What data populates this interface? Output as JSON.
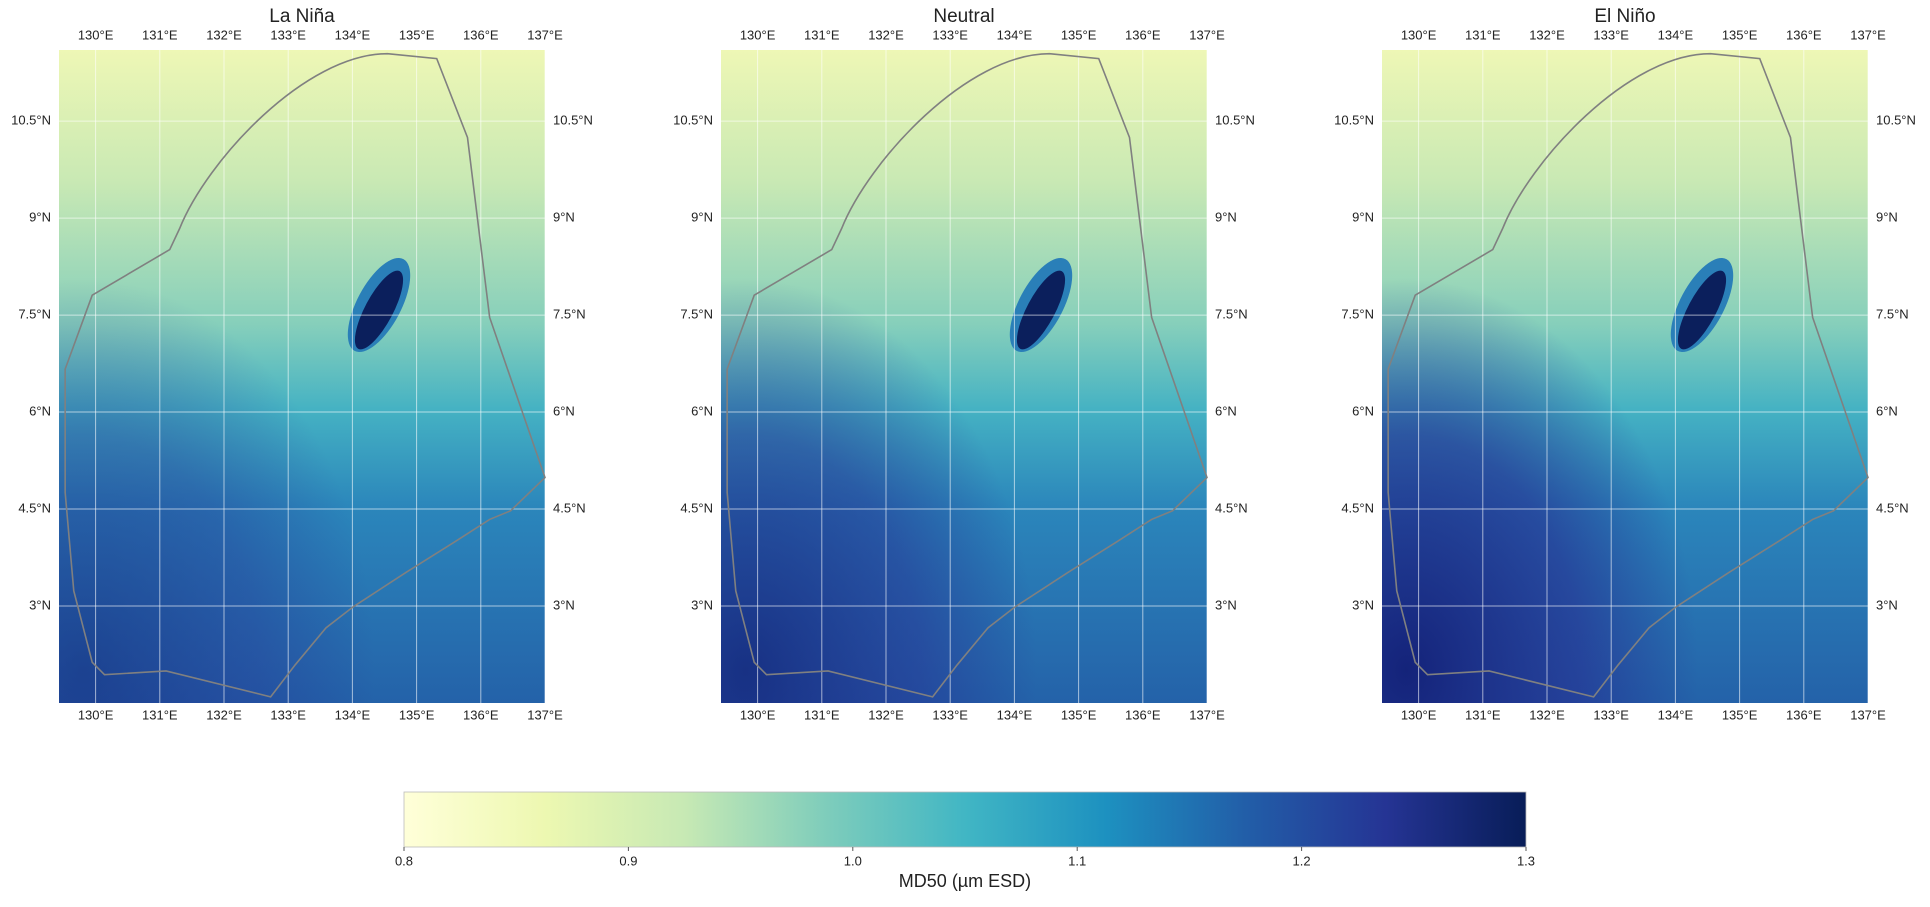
{
  "panels": [
    {
      "title": "La Niña"
    },
    {
      "title": "Neutral"
    },
    {
      "title": "El Niño"
    }
  ],
  "map_axes": {
    "xlim": [
      129.43,
      137
    ],
    "ylim": [
      1.5,
      11.6
    ],
    "xticks": [
      {
        "value": 130,
        "label": "130°E"
      },
      {
        "value": 131,
        "label": "131°E"
      },
      {
        "value": 132,
        "label": "132°E"
      },
      {
        "value": 133,
        "label": "133°E"
      },
      {
        "value": 134,
        "label": "134°E"
      },
      {
        "value": 135,
        "label": "135°E"
      },
      {
        "value": 136,
        "label": "136°E"
      },
      {
        "value": 137,
        "label": "137°E"
      }
    ],
    "yticks": [
      {
        "value": 3,
        "label": "3°N"
      },
      {
        "value": 4.5,
        "label": "4.5°N"
      },
      {
        "value": 6,
        "label": "6°N"
      },
      {
        "value": 7.5,
        "label": "7.5°N"
      },
      {
        "value": 9,
        "label": "9°N"
      },
      {
        "value": 10.5,
        "label": "10.5°N"
      }
    ]
  },
  "colorbar": {
    "label": "MD50 (µm ESD)",
    "lim": [
      0.8,
      1.3
    ],
    "ticks": [
      0.8,
      0.9,
      {
        "value": 1,
        "label": "1.0"
      },
      1.1,
      1.2,
      1.3
    ]
  }
}
